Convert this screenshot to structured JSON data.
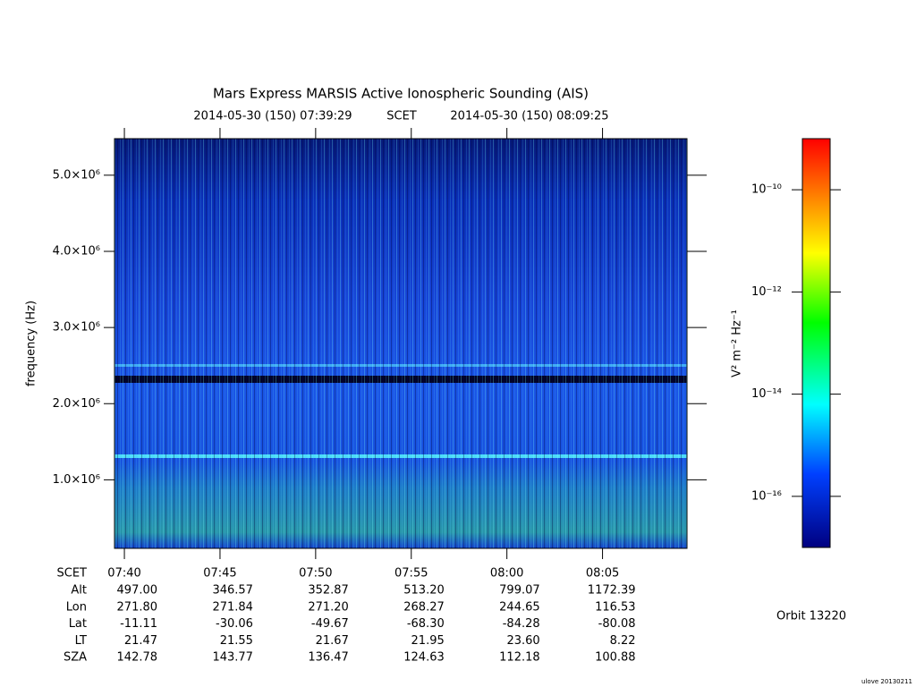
{
  "chart_data": {
    "type": "spectrogram",
    "title": "Mars Express MARSIS Active Ionospheric Sounding (AIS)",
    "subtitle": {
      "start": "2014-05-30 (150) 07:39:29",
      "frame": "SCET",
      "end": "2014-05-30 (150) 08:09:25"
    },
    "y_label": "frequency (Hz)",
    "ylim": [
      100000,
      5480000
    ],
    "yticks": [
      {
        "value": 1000000,
        "label": "1.0×10⁶"
      },
      {
        "value": 2000000,
        "label": "2.0×10⁶"
      },
      {
        "value": 3000000,
        "label": "3.0×10⁶"
      },
      {
        "value": 4000000,
        "label": "4.0×10⁶"
      },
      {
        "value": 5000000,
        "label": "5.0×10⁶"
      }
    ],
    "xticks": [
      "07:40",
      "07:45",
      "07:50",
      "07:55",
      "08:00",
      "08:05"
    ],
    "colorbar": {
      "label": "V² m⁻² Hz⁻¹",
      "log": true,
      "zlim": [
        1e-17,
        1e-09
      ],
      "ticks": [
        {
          "value": 1e-10,
          "label": "10⁻¹⁰"
        },
        {
          "value": 1e-12,
          "label": "10⁻¹²"
        },
        {
          "value": 1e-14,
          "label": "10⁻¹⁴"
        },
        {
          "value": 1e-16,
          "label": "10⁻¹⁶"
        }
      ]
    },
    "ephemeris": {
      "header": "SCET",
      "rows": [
        {
          "name": "Alt",
          "values": [
            "497.00",
            "346.57",
            "352.87",
            "513.20",
            "799.07",
            "1172.39"
          ]
        },
        {
          "name": "Lon",
          "values": [
            "271.80",
            "271.84",
            "271.20",
            "268.27",
            "244.65",
            "116.53"
          ]
        },
        {
          "name": "Lat",
          "values": [
            "-11.11",
            "-30.06",
            "-49.67",
            "-68.30",
            "-84.28",
            "-80.08"
          ]
        },
        {
          "name": "LT",
          "values": [
            "21.47",
            "21.55",
            "21.67",
            "21.95",
            "23.60",
            "8.22"
          ]
        },
        {
          "name": "SZA",
          "values": [
            "142.78",
            "143.77",
            "136.47",
            "124.63",
            "112.18",
            "100.88"
          ]
        }
      ]
    },
    "orbit": "Orbit 13220",
    "footer": "ulove 20130211"
  }
}
